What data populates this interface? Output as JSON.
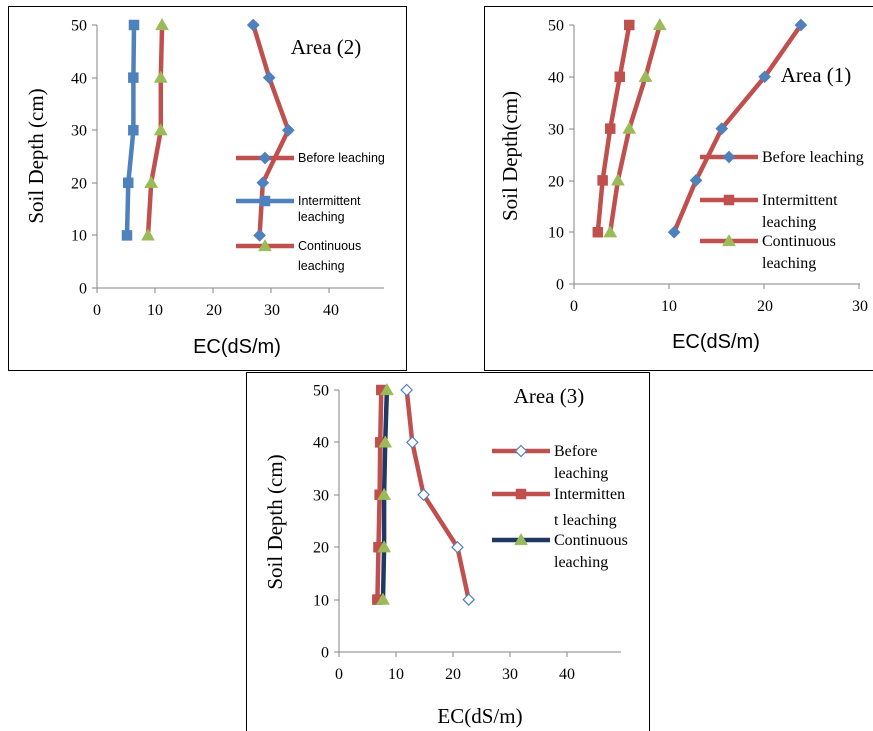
{
  "chart_data": [
    {
      "type": "line",
      "title": "Area (2)",
      "xlabel": "EC(dS/m)",
      "ylabel": "Soil Depth (cm)",
      "xlim": [
        0,
        45
      ],
      "ylim": [
        0,
        50
      ],
      "xticks": [
        "0",
        "10",
        "20",
        "30",
        "40"
      ],
      "yticks": [
        "0",
        "10",
        "20",
        "30",
        "40",
        "50"
      ],
      "grid": false,
      "legend_position": "right",
      "series": [
        {
          "name": "Before leaching",
          "color": "#c0504d",
          "marker": "diamond",
          "x": [
            25.5,
            26,
            30,
            27,
            24.5
          ],
          "y": [
            10,
            20,
            30,
            40,
            50
          ]
        },
        {
          "name": "Intermittent leaching",
          "color": "#4f81bd",
          "marker": "square",
          "x": [
            4.7,
            4.9,
            5.7,
            5.7,
            5.8
          ],
          "y": [
            10,
            20,
            30,
            40,
            50
          ]
        },
        {
          "name": "Continuous leaching",
          "color": "#c0504d",
          "marker": "triangle",
          "x": [
            8,
            8.5,
            10,
            10,
            10.2
          ],
          "y": [
            10,
            20,
            30,
            40,
            50
          ]
        }
      ]
    },
    {
      "type": "line",
      "title": "Area (1)",
      "xlabel": "EC(dS/m)",
      "ylabel": "Soil Depth(cm)",
      "xlim": [
        0,
        30
      ],
      "ylim": [
        0,
        50
      ],
      "xticks": [
        "0",
        "10",
        "20",
        "30"
      ],
      "yticks": [
        "0",
        "10",
        "20",
        "30",
        "40",
        "50"
      ],
      "grid": false,
      "legend_position": "right",
      "series": [
        {
          "name": "Before leaching",
          "color": "#c0504d",
          "marker": "diamond",
          "x": [
            10.5,
            12.8,
            15.5,
            20,
            23.8
          ],
          "y": [
            10,
            20,
            30,
            40,
            50
          ]
        },
        {
          "name": "Intermittent leaching",
          "color": "#c0504d",
          "marker": "square",
          "x": [
            2.5,
            3,
            3.8,
            4.8,
            5.8
          ],
          "y": [
            10,
            20,
            30,
            40,
            50
          ]
        },
        {
          "name": "Continuous leaching",
          "color": "#c0504d",
          "marker": "triangle",
          "x": [
            3.8,
            4.6,
            5.8,
            7.5,
            9
          ],
          "y": [
            10,
            20,
            30,
            40,
            50
          ]
        }
      ]
    },
    {
      "type": "line",
      "title": "Area (3)",
      "xlabel": "EC(dS/m)",
      "ylabel": "Soil Depth (cm)",
      "xlim": [
        0,
        50
      ],
      "ylim": [
        0,
        50
      ],
      "xticks": [
        "0",
        "10",
        "20",
        "30",
        "40"
      ],
      "yticks": [
        "0",
        "10",
        "20",
        "30",
        "40",
        "50"
      ],
      "grid": false,
      "legend_position": "right",
      "series": [
        {
          "name": "Before leaching",
          "color": "#c0504d",
          "marker": "diamond-open",
          "x": [
            23,
            21,
            15,
            13,
            12
          ],
          "y": [
            10,
            20,
            30,
            40,
            50
          ]
        },
        {
          "name": "Intermitten t leaching",
          "color": "#c0504d",
          "marker": "square",
          "x": [
            6.8,
            7,
            7.2,
            7.3,
            7.5
          ],
          "y": [
            10,
            20,
            30,
            40,
            50
          ]
        },
        {
          "name": "Continuous leaching",
          "color": "#1f3864",
          "marker": "triangle",
          "x": [
            7.8,
            8,
            8,
            8.2,
            8.5
          ],
          "y": [
            10,
            20,
            30,
            40,
            50
          ]
        }
      ]
    }
  ]
}
